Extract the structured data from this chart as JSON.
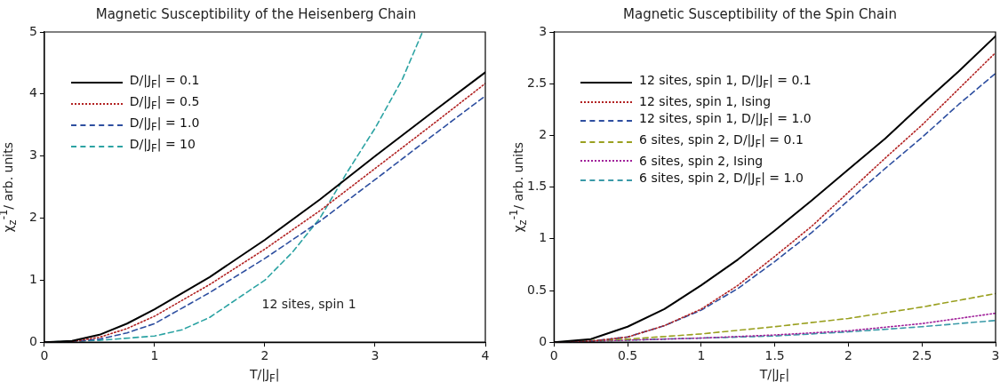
{
  "chart_data": [
    {
      "type": "line",
      "title": "Magnetic Susceptibility of the Heisenberg Chain",
      "xlabel": "T/|J$_{F}$|",
      "ylabel": "χ$_{z}$$^{-1}$/ arb. units",
      "xlim": [
        0,
        4
      ],
      "ylim": [
        0,
        5
      ],
      "xticks": [
        0,
        1,
        2,
        3,
        4
      ],
      "yticks": [
        0,
        1,
        2,
        3,
        4,
        5
      ],
      "legend": "top left",
      "annotations": [
        "12 sites, spin 1"
      ],
      "series": [
        {
          "name": "D/|J$_{F}$| = 0.1",
          "color": "#000000",
          "line_style": "solid",
          "x": [
            0,
            0.25,
            0.5,
            0.75,
            1,
            1.5,
            2,
            2.5,
            3,
            3.5,
            4
          ],
          "values": [
            0,
            0.02,
            0.12,
            0.3,
            0.53,
            1.05,
            1.65,
            2.3,
            3.0,
            3.68,
            4.35
          ]
        },
        {
          "name": "D/|J$_{F}$| = 0.5",
          "color": "#b22222",
          "line_style": "dotted",
          "x": [
            0,
            0.25,
            0.5,
            0.75,
            1,
            1.5,
            2,
            2.5,
            3,
            3.5,
            4
          ],
          "values": [
            0,
            0.01,
            0.08,
            0.22,
            0.42,
            0.93,
            1.5,
            2.12,
            2.8,
            3.48,
            4.17
          ]
        },
        {
          "name": "D/|J$_{F}$| = 1.0",
          "color": "#2e4fa0",
          "line_style": "dashed",
          "x": [
            0,
            0.25,
            0.5,
            0.75,
            1,
            1.5,
            2,
            2.5,
            3,
            3.5,
            4
          ],
          "values": [
            0,
            0.01,
            0.05,
            0.15,
            0.3,
            0.8,
            1.35,
            1.95,
            2.62,
            3.3,
            3.97
          ]
        },
        {
          "name": "D/|J$_{F}$| = 10",
          "color": "#2ca3a3",
          "line_style": "dashed",
          "x": [
            0,
            0.5,
            1,
            1.25,
            1.5,
            1.75,
            2,
            2.25,
            2.5,
            2.75,
            3,
            3.25,
            3.43
          ],
          "values": [
            0,
            0.03,
            0.1,
            0.2,
            0.4,
            0.7,
            1.0,
            1.45,
            2.0,
            2.75,
            3.45,
            4.25,
            5.0
          ]
        }
      ]
    },
    {
      "type": "line",
      "title": "Magnetic Susceptibility of the Spin Chain",
      "xlabel": "T/|J$_{F}$|",
      "ylabel": "χ$_{z}$$^{-1}$/ arb. units",
      "xlim": [
        0,
        3
      ],
      "ylim": [
        0,
        3
      ],
      "xticks": [
        0,
        0.5,
        1,
        1.5,
        2,
        2.5,
        3
      ],
      "yticks": [
        0,
        0.5,
        1,
        1.5,
        2,
        2.5,
        3
      ],
      "legend": "top left",
      "series": [
        {
          "name": "12 sites, spin 1, D/|J$_{F}$| = 0.1",
          "color": "#000000",
          "line_style": "solid",
          "x": [
            0,
            0.25,
            0.5,
            0.75,
            1,
            1.25,
            1.5,
            1.75,
            2,
            2.25,
            2.5,
            2.75,
            3
          ],
          "values": [
            0,
            0.03,
            0.15,
            0.32,
            0.55,
            0.8,
            1.08,
            1.37,
            1.67,
            1.97,
            2.3,
            2.62,
            2.96
          ]
        },
        {
          "name": "12 sites, spin 1, Ising",
          "color": "#b22222",
          "line_style": "dotted",
          "x": [
            0,
            0.25,
            0.5,
            0.75,
            1,
            1.25,
            1.5,
            1.75,
            2,
            2.25,
            2.5,
            2.75,
            3
          ],
          "values": [
            0,
            0.01,
            0.05,
            0.16,
            0.32,
            0.55,
            0.83,
            1.12,
            1.45,
            1.78,
            2.1,
            2.45,
            2.8
          ]
        },
        {
          "name": "12 sites, spin 1, D/|J$_{F}$| = 1.0",
          "color": "#2e4fa0",
          "line_style": "dashed",
          "x": [
            0,
            0.25,
            0.5,
            0.75,
            1,
            1.25,
            1.5,
            1.75,
            2,
            2.25,
            2.5,
            2.75,
            3
          ],
          "values": [
            0,
            0.01,
            0.05,
            0.16,
            0.31,
            0.52,
            0.78,
            1.06,
            1.37,
            1.68,
            1.98,
            2.3,
            2.6
          ]
        },
        {
          "name": "6 sites, spin 2, D/|J$_{F}$| = 0.1",
          "color": "#9aa020",
          "line_style": "dashed",
          "x": [
            0,
            0.5,
            1,
            1.5,
            2,
            2.5,
            3
          ],
          "values": [
            0,
            0.03,
            0.08,
            0.15,
            0.23,
            0.34,
            0.47
          ]
        },
        {
          "name": "6 sites, spin 2, Ising",
          "color": "#a0209a",
          "line_style": "dotted",
          "x": [
            0,
            0.5,
            1,
            1.5,
            2,
            2.5,
            3
          ],
          "values": [
            0,
            0.02,
            0.04,
            0.07,
            0.11,
            0.18,
            0.28
          ]
        },
        {
          "name": "6 sites, spin 2, D/|J$_{F}$| = 1.0",
          "color": "#3a9aa8",
          "line_style": "dashed",
          "x": [
            0,
            0.5,
            1,
            1.5,
            2,
            2.5,
            3
          ],
          "values": [
            0,
            0.02,
            0.04,
            0.06,
            0.1,
            0.15,
            0.21
          ]
        }
      ]
    }
  ]
}
